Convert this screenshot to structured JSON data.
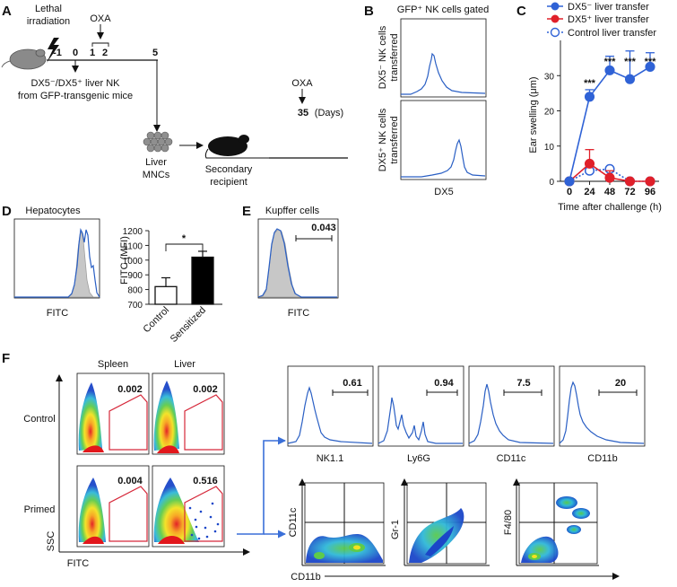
{
  "panels": {
    "A": {
      "label": "A",
      "irradiation": "Lethal irradiation",
      "oxa_top": "OXA",
      "timepoints": [
        "-1",
        "0",
        "1",
        "2",
        "5"
      ],
      "transfer_line1": "DX5⁻/DX5⁺ liver NK",
      "transfer_line2": "from GFP-transgenic mice",
      "liver_line1": "Liver",
      "liver_line2": "MNCs",
      "secondary_line1": "Secondary",
      "secondary_line2": "recipient",
      "oxa_end": "OXA",
      "day_35": "35",
      "days_unit": "(Days)"
    },
    "B": {
      "label": "B",
      "title": "GFP⁺ NK cells gated",
      "row1_line1": "DX5⁻ NK cells",
      "row1_line2": "transferred",
      "row2_line1": "DX5⁺ NK cells",
      "row2_line2": "transferred",
      "xlabel": "DX5"
    },
    "C": {
      "label": "C"
    },
    "D": {
      "label": "D",
      "hist_title": "Hepatocytes",
      "hist_xlabel": "FITC",
      "significance": "*"
    },
    "E": {
      "label": "E",
      "title": "Kupffer cells",
      "gate_value": "0.043",
      "xlabel": "FITC"
    },
    "F": {
      "label": "F",
      "col_spleen": "Spleen",
      "col_liver": "Liver",
      "row_control": "Control",
      "row_primed": "Primed",
      "y_axis": "SSC",
      "x_axis": "FITC",
      "gates": [
        "0.002",
        "0.002",
        "0.004",
        "0.516"
      ],
      "histograms": [
        {
          "marker": "NK1.1",
          "value": "0.61"
        },
        {
          "marker": "Ly6G",
          "value": "0.94"
        },
        {
          "marker": "CD11c",
          "value": "7.5"
        },
        {
          "marker": "CD11b",
          "value": "20"
        }
      ],
      "dot_x_label": "CD11b",
      "dot_y_labels": [
        "CD11c",
        "Gr-1",
        "F4/80"
      ]
    }
  },
  "chart_data": [
    {
      "type": "line",
      "title": "",
      "xlabel": "Time after challenge (h)",
      "ylabel": "Ear swelling (μm)",
      "x": [
        0,
        24,
        48,
        72,
        96
      ],
      "x_tick_labels": [
        "0",
        "24",
        "48",
        "72",
        "96"
      ],
      "y_ticks": [
        0,
        10,
        20,
        30
      ],
      "ylim": [
        0,
        40
      ],
      "legend_position": "top",
      "series": [
        {
          "name": "DX5⁻ liver transfer",
          "color": "#2f62d6",
          "marker": "filled-circle",
          "line": "solid",
          "values": [
            0,
            24,
            31.5,
            29,
            32.5
          ],
          "errors": [
            0,
            2,
            4,
            8,
            4
          ]
        },
        {
          "name": "DX5⁺ liver transfer",
          "color": "#e0202a",
          "marker": "filled-circle",
          "line": "solid",
          "values": [
            0,
            5,
            1,
            0,
            0
          ],
          "errors": [
            0,
            4,
            2,
            0,
            0
          ]
        },
        {
          "name": "Control liver transfer",
          "color": "#2f62d6",
          "marker": "open-circle",
          "line": "dotted",
          "values": [
            0,
            3,
            3.5,
            0,
            0
          ],
          "errors": [
            0,
            0,
            0,
            0,
            0
          ]
        }
      ],
      "annotations": [
        "***",
        "***",
        "***",
        "***"
      ]
    },
    {
      "type": "bar",
      "title": "",
      "xlabel": "",
      "ylabel": "FITC (MFI)",
      "categories": [
        "Control",
        "Sensitized"
      ],
      "values": [
        820,
        1020
      ],
      "errors": [
        60,
        40
      ],
      "colors": [
        "#ffffff",
        "#000000"
      ],
      "y_ticks": [
        700,
        800,
        900,
        1000,
        1100,
        1200
      ],
      "ylim": [
        700,
        1200
      ],
      "significance": "*"
    }
  ]
}
